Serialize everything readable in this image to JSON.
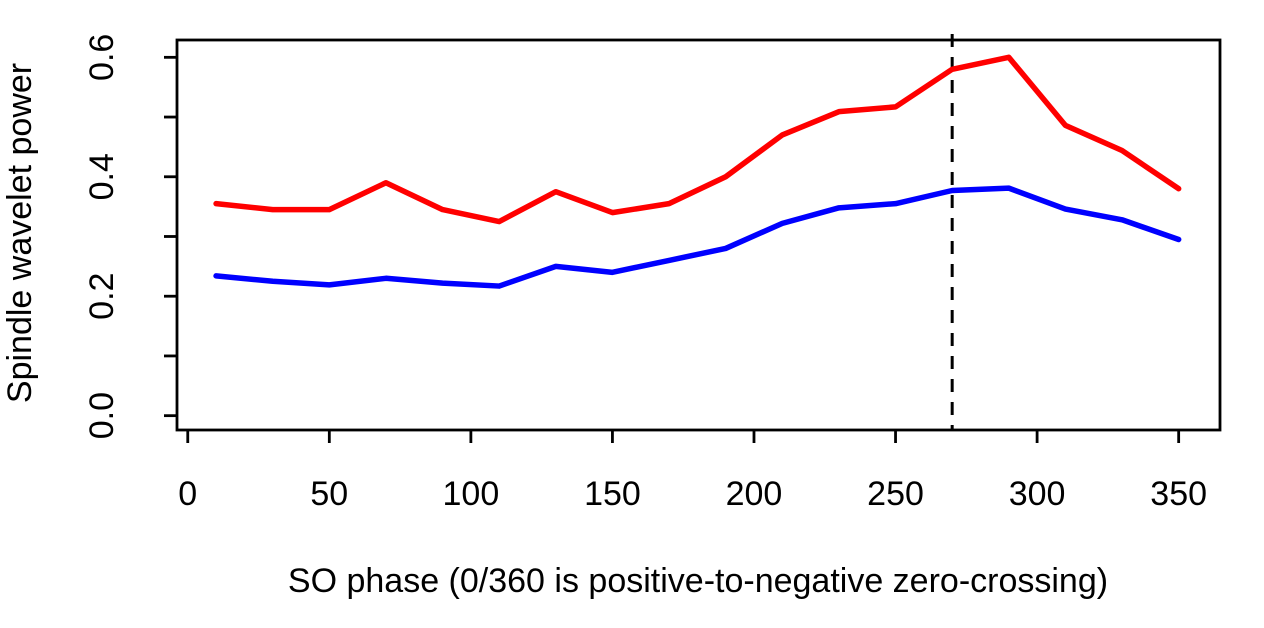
{
  "chart_data": {
    "type": "line",
    "title": "",
    "xlabel": "SO phase (0/360 is positive-to-negative zero-crossing)",
    "ylabel": "Spindle wavelet power",
    "x": [
      10,
      30,
      50,
      70,
      90,
      110,
      130,
      150,
      170,
      190,
      210,
      230,
      250,
      270,
      290,
      310,
      330,
      350
    ],
    "series": [
      {
        "name": "red",
        "color": "#ff0000",
        "values": [
          0.355,
          0.345,
          0.345,
          0.39,
          0.345,
          0.325,
          0.375,
          0.34,
          0.355,
          0.4,
          0.47,
          0.509,
          0.517,
          0.58,
          0.6,
          0.486,
          0.444,
          0.38
        ]
      },
      {
        "name": "blue",
        "color": "#0000ff",
        "values": [
          0.234,
          0.225,
          0.219,
          0.23,
          0.222,
          0.217,
          0.25,
          0.24,
          0.26,
          0.28,
          0.322,
          0.348,
          0.355,
          0.377,
          0.381,
          0.346,
          0.328,
          0.295
        ]
      }
    ],
    "x_ticks": [
      0,
      50,
      100,
      150,
      200,
      250,
      300,
      350
    ],
    "x_tick_labels": [
      "0",
      "50",
      "100",
      "150",
      "200",
      "250",
      "300",
      "350"
    ],
    "y_ticks": [
      0.0,
      0.1,
      0.2,
      0.3,
      0.4,
      0.5,
      0.6
    ],
    "y_labeled_ticks": [
      0.0,
      0.2,
      0.4,
      0.6
    ],
    "y_tick_labels": [
      "0.0",
      "0.2",
      "0.4",
      "0.6"
    ],
    "xlim": [
      -3.8,
      364.6
    ],
    "ylim": [
      -0.024,
      0.629
    ],
    "grid": false,
    "legend": null,
    "vline": {
      "x": 270,
      "style": "dashed",
      "color": "#000000"
    },
    "axis_color": "#000000",
    "background_color": "#ffffff"
  }
}
